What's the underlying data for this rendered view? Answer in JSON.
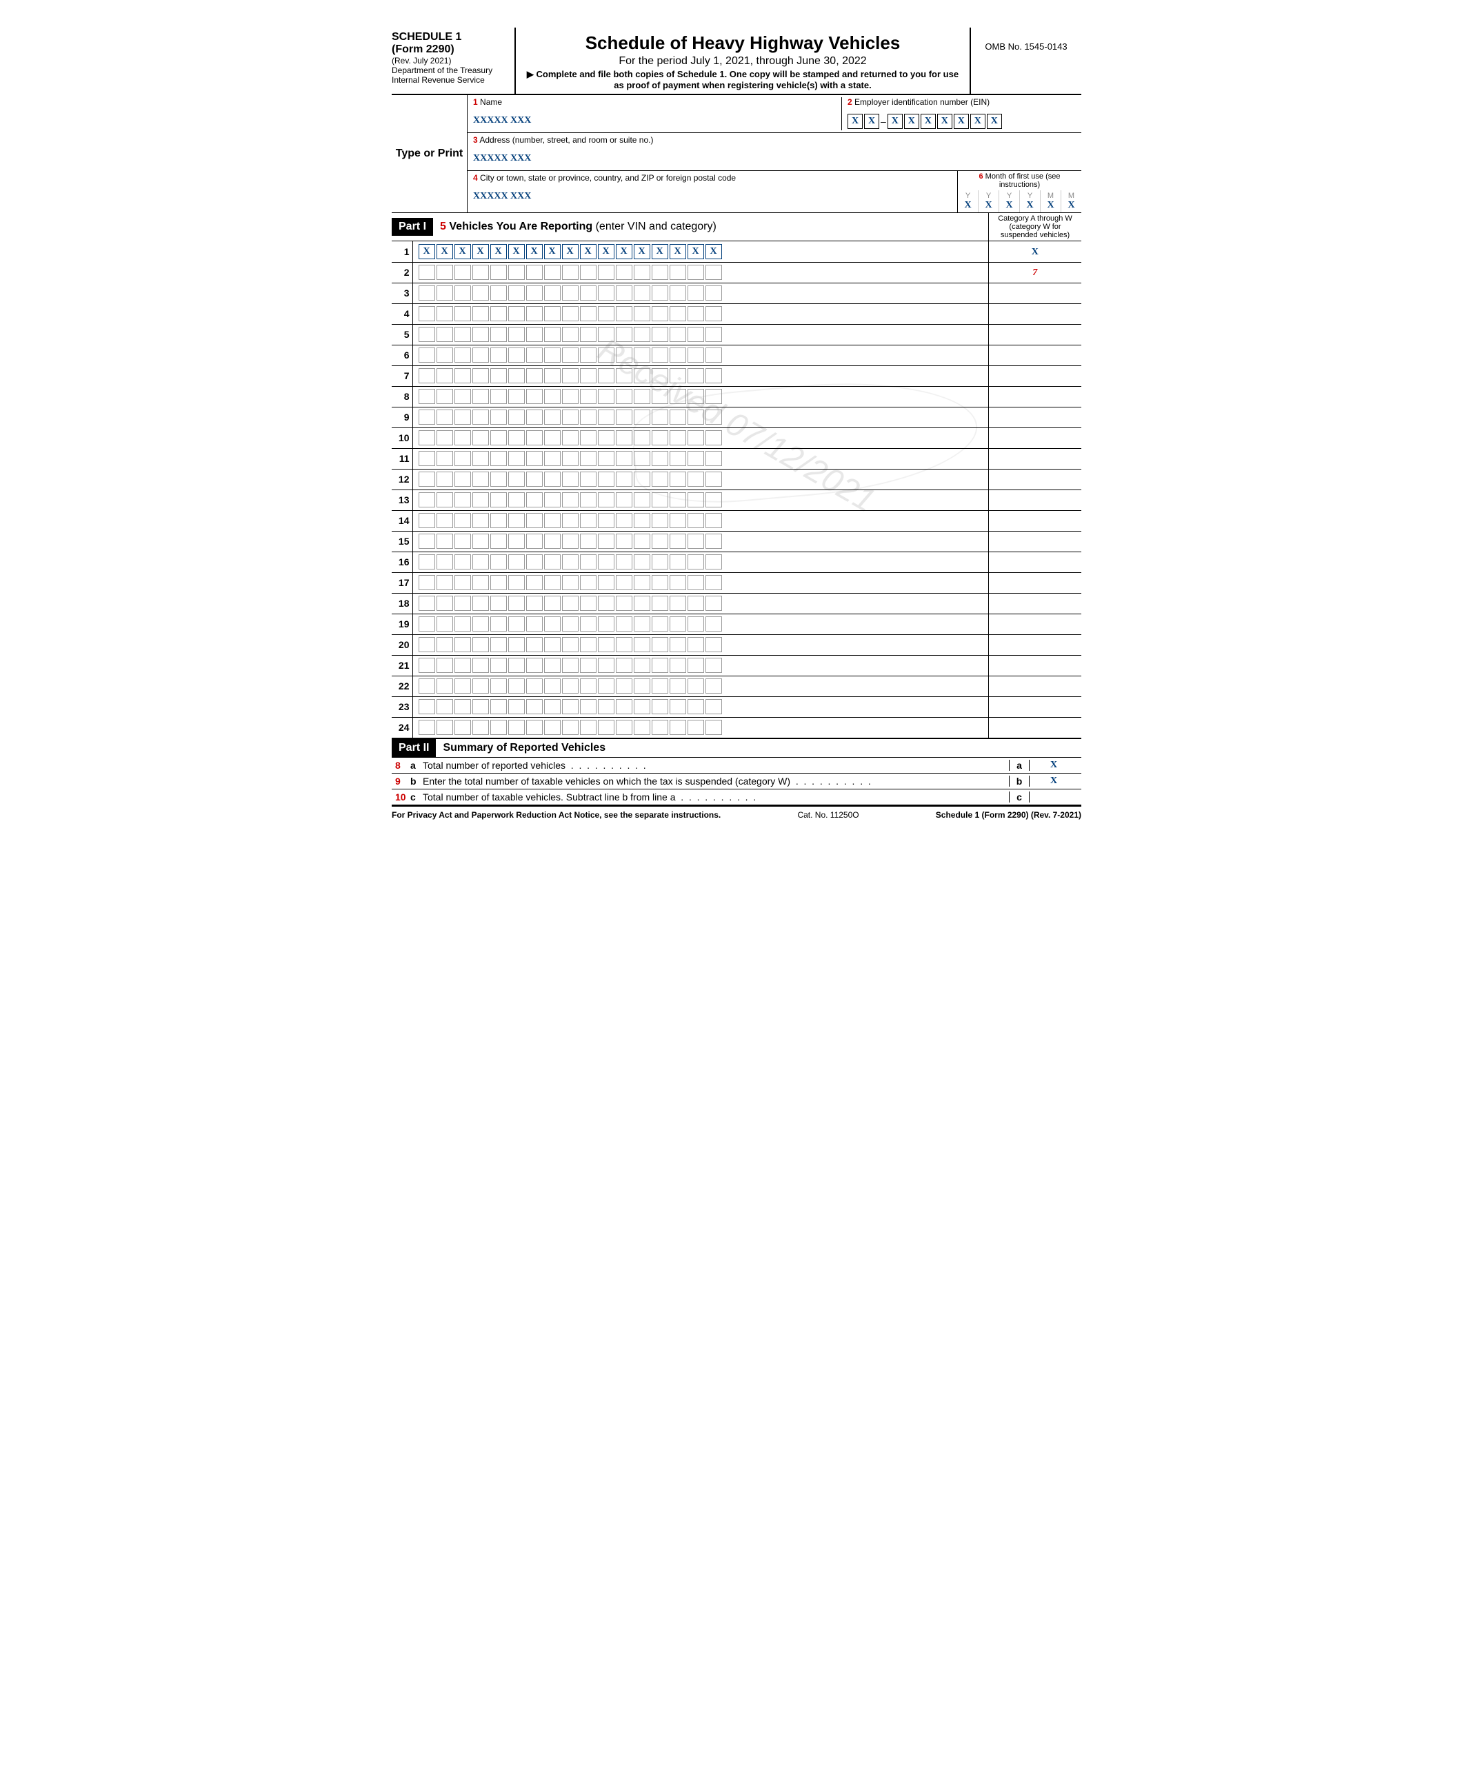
{
  "header": {
    "schedule": "SCHEDULE 1",
    "form": "(Form 2290)",
    "revision": "(Rev. July 2021)",
    "department": "Department of the Treasury",
    "service": "Internal Revenue Service",
    "title": "Schedule of Heavy Highway Vehicles",
    "period": "For the period July 1, 2021, through June 30, 2022",
    "instruction": "▶ Complete and file both copies of Schedule 1. One copy will be stamped and returned to you for use as proof of payment when registering vehicle(s) with a state.",
    "omb": "OMB No. 1545-0143"
  },
  "info": {
    "name_num": "1",
    "name_label": "Name",
    "name_value": "XXXXX XXX",
    "ein_num": "2",
    "ein_label": "Employer identification number (EIN)",
    "ein_values": [
      "X",
      "X",
      "X",
      "X",
      "X",
      "X",
      "X",
      "X",
      "X"
    ],
    "address_num": "3",
    "address_label": "Address (number, street, and room or suite no.)",
    "address_value": "XXXXX XXX",
    "city_num": "4",
    "city_label": "City or town, state or province, country, and ZIP or foreign postal code",
    "city_value": "XXXXX XXX",
    "month_num": "6",
    "month_label": "Month of first use (see instructions)",
    "month_headers": [
      "Y",
      "Y",
      "Y",
      "Y",
      "M",
      "M"
    ],
    "month_values": [
      "X",
      "X",
      "X",
      "X",
      "X",
      "X"
    ],
    "type_or_print": "Type or Print"
  },
  "part1": {
    "label": "Part I",
    "num": "5",
    "title": "Vehicles You Are Reporting",
    "subtitle": "(enter VIN and category)",
    "category_header": "Category A through W (category W for suspended vehicles)",
    "rows": 24,
    "row1_vin": [
      "X",
      "X",
      "X",
      "X",
      "X",
      "X",
      "X",
      "X",
      "X",
      "X",
      "X",
      "X",
      "X",
      "X",
      "X",
      "X",
      "X"
    ],
    "row1_cat": "X",
    "row2_cat": "7"
  },
  "part2": {
    "label": "Part II",
    "title": "Summary of Reported Vehicles",
    "lines": [
      {
        "num": "8",
        "letter": "a",
        "text": "Total number of reported vehicles",
        "box": "a",
        "val": "X"
      },
      {
        "num": "9",
        "letter": "b",
        "text": "Enter the total number of taxable vehicles on which the tax is suspended (category W)",
        "box": "b",
        "val": "X"
      },
      {
        "num": "10",
        "letter": "c",
        "text": "Total number of taxable vehicles. Subtract line b from line a",
        "box": "c",
        "val": ""
      }
    ]
  },
  "footer": {
    "left": "For Privacy Act and Paperwork Reduction Act Notice, see the separate instructions.",
    "center": "Cat. No. 11250O",
    "right": "Schedule 1 (Form 2290) (Rev. 7-2021)"
  },
  "watermark": "Received 07/12/2021"
}
